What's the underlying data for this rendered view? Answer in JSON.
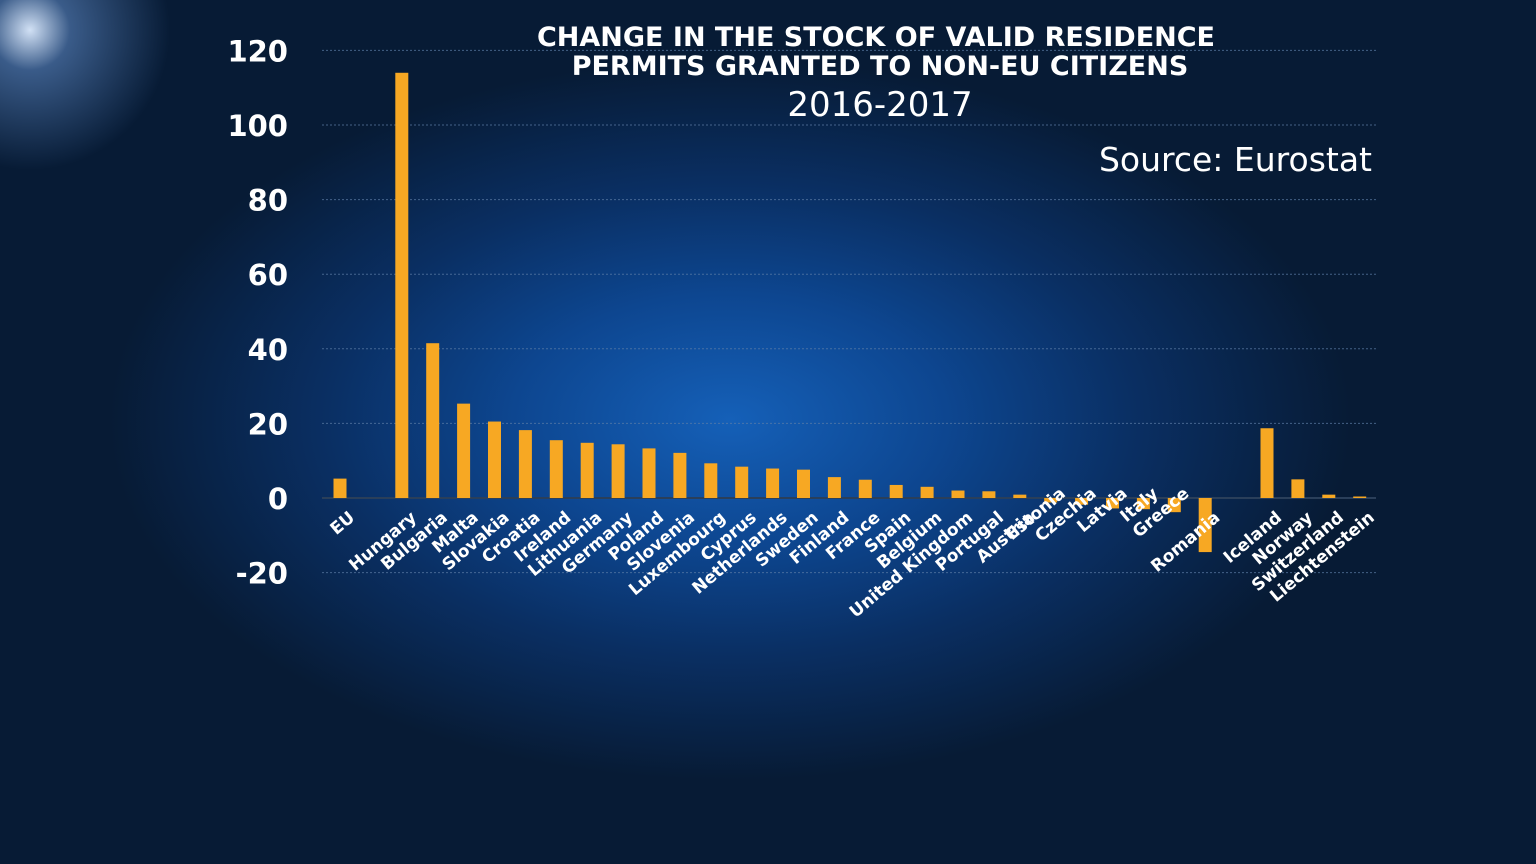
{
  "chart_data": {
    "type": "bar",
    "title": "CHANGE IN THE STOCK OF VALID RESIDENCE PERMITS GRANTED TO NON-EU CITIZENS",
    "title_lines": [
      "CHANGE IN THE STOCK OF VALID RESIDENCE",
      "PERMITS GRANTED TO NON-EU CITIZENS"
    ],
    "subtitle": "2016-2017",
    "source": "Source: Eurostat",
    "ylim": [
      -20,
      120
    ],
    "yticks": [
      120,
      100,
      80,
      60,
      40,
      20,
      0,
      -20
    ],
    "ytick_labels": [
      "120",
      "100",
      "80",
      "60",
      "40",
      "20",
      "0",
      "-20"
    ],
    "grid": true,
    "bar_color": "#f7a823",
    "categories": [
      "EU",
      "Hungary",
      "Bulgaria",
      "Malta",
      "Slovakia",
      "Croatia",
      "Ireland",
      "Lithuania",
      "Germany",
      "Poland",
      "Slovenia",
      "Luxembourg",
      "Cyprus",
      "Netherlands",
      "Sweden",
      "Finland",
      "France",
      "Spain",
      "Belgium",
      "United Kingdom",
      "Portugal",
      "Austria",
      "Estonia",
      "Czechia",
      "Latvia",
      "Italy",
      "Greece",
      "Romania",
      "Iceland",
      "Norway",
      "Switzerland",
      "Liechtenstein"
    ],
    "slots": [
      0,
      2,
      3,
      4,
      5,
      6,
      7,
      8,
      9,
      10,
      11,
      12,
      13,
      14,
      15,
      16,
      17,
      18,
      19,
      20,
      21,
      22,
      23,
      24,
      25,
      26,
      27,
      28,
      30,
      31,
      32,
      33
    ],
    "values": [
      5.2,
      114,
      41.5,
      25.3,
      20.5,
      18.2,
      15.5,
      14.8,
      14.4,
      13.3,
      12.1,
      9.3,
      8.4,
      7.9,
      7.6,
      5.6,
      4.9,
      3.5,
      3.0,
      2.0,
      1.8,
      0.9,
      -1.2,
      -1.8,
      -2.8,
      -3.0,
      -3.8,
      -14.5,
      18.7,
      5.0,
      0.9,
      0.4
    ]
  }
}
